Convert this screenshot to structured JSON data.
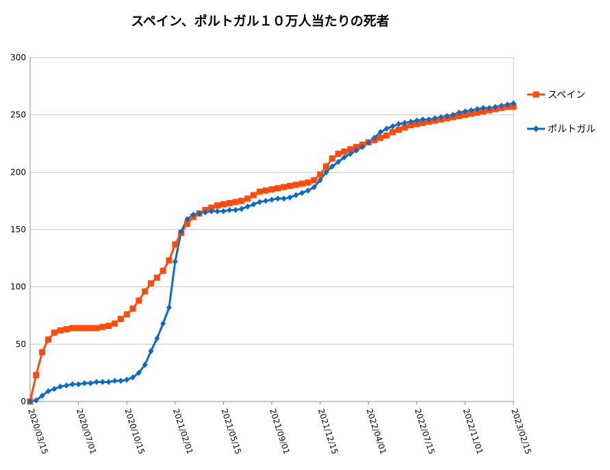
{
  "chart_data": {
    "type": "line",
    "title": "スペイン、ポルトガル１０万人当たりの死者",
    "xlabel": "",
    "ylabel": "",
    "ylim": [
      0,
      300
    ],
    "yticks": [
      0,
      50,
      100,
      150,
      200,
      250,
      300
    ],
    "x_tick_labels": [
      "2020/03/15",
      "2020/07/01",
      "2020/10/15",
      "2021/02/01",
      "2021/05/15",
      "2021/09/01",
      "2021/12/15",
      "2022/04/01",
      "2022/07/15",
      "2022/11/01",
      "2023/02/15"
    ],
    "grid": true,
    "legend_position": "right",
    "colors": {
      "spain": "#ff4c0a",
      "portugal": "#0b6bc9",
      "grid": "#c6c6c6"
    },
    "series": [
      {
        "name": "スペイン",
        "color": "#ff4c0a",
        "marker": "square",
        "values": [
          0,
          23,
          43,
          54,
          60,
          62,
          63,
          64,
          64,
          64,
          64,
          64,
          65,
          66,
          68,
          72,
          76,
          81,
          88,
          96,
          103,
          108,
          114,
          123,
          137,
          147,
          155,
          161,
          164,
          167,
          169,
          171,
          172,
          173,
          174,
          175,
          177,
          180,
          183,
          184,
          185,
          186,
          187,
          188,
          189,
          190,
          191,
          193,
          198,
          205,
          212,
          216,
          218,
          220,
          222,
          224,
          226,
          228,
          230,
          232,
          235,
          237,
          239,
          241,
          242,
          243,
          244,
          245,
          246,
          247,
          248,
          249,
          250,
          251,
          252,
          253,
          254,
          255,
          256,
          257,
          257
        ]
      },
      {
        "name": "ポルトガル",
        "color": "#0b6bc9",
        "marker": "diamond",
        "values": [
          0,
          1,
          5,
          9,
          11,
          13,
          14,
          15,
          15,
          16,
          16,
          17,
          17,
          17,
          18,
          18,
          19,
          21,
          25,
          32,
          44,
          55,
          68,
          82,
          122,
          148,
          159,
          163,
          164,
          165,
          166,
          166,
          166,
          167,
          167,
          168,
          170,
          172,
          174,
          175,
          176,
          177,
          177,
          178,
          180,
          182,
          184,
          187,
          193,
          200,
          205,
          209,
          213,
          216,
          219,
          222,
          226,
          230,
          235,
          238,
          240,
          242,
          243,
          244,
          245,
          246,
          246,
          247,
          248,
          249,
          250,
          252,
          253,
          254,
          255,
          256,
          256,
          257,
          258,
          259,
          260
        ]
      }
    ]
  }
}
